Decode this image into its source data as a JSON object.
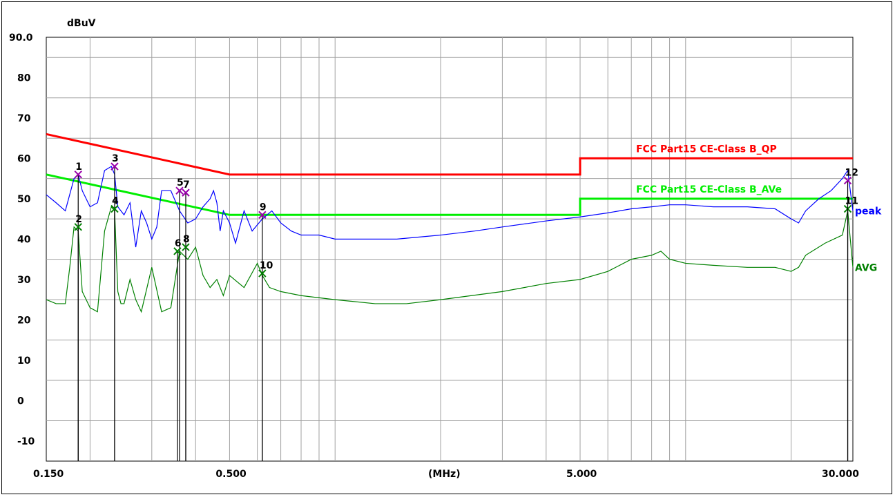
{
  "chart_data": {
    "type": "line",
    "title": "",
    "ylabel": "dBuV",
    "xlabel": "(MHz)",
    "x_scale": "log",
    "xlim": [
      0.15,
      30.0
    ],
    "ylim": [
      -15,
      90
    ],
    "grid": true,
    "y_tick_labels": [
      {
        "value": 90,
        "label": "90.0"
      },
      {
        "value": 80,
        "label": "80"
      },
      {
        "value": 70,
        "label": "70"
      },
      {
        "value": 60,
        "label": "60"
      },
      {
        "value": 50,
        "label": "50"
      },
      {
        "value": 40,
        "label": "40"
      },
      {
        "value": 30,
        "label": "30"
      },
      {
        "value": 20,
        "label": "20"
      },
      {
        "value": 10,
        "label": "10"
      },
      {
        "value": 0,
        "label": "0"
      },
      {
        "value": -10,
        "label": "-10"
      }
    ],
    "x_tick_labels": [
      {
        "value": 0.15,
        "label": "0.150"
      },
      {
        "value": 0.5,
        "label": "0.500"
      },
      {
        "value": 5.0,
        "label": "5.000"
      },
      {
        "value": 30.0,
        "label": "30.000"
      }
    ],
    "limit_lines": [
      {
        "name": "FCC Part15 CE-Class B_QP",
        "color": "#ff0000",
        "points": [
          [
            0.15,
            66
          ],
          [
            0.5,
            56
          ],
          [
            5.0,
            56
          ],
          [
            5.0,
            60
          ],
          [
            30.0,
            60
          ]
        ]
      },
      {
        "name": "FCC Part15 CE-Class B_AVe",
        "color": "#00ee00",
        "points": [
          [
            0.15,
            56
          ],
          [
            0.5,
            46
          ],
          [
            5.0,
            46
          ],
          [
            5.0,
            50
          ],
          [
            30.0,
            50
          ]
        ]
      }
    ],
    "series": [
      {
        "name": "peak",
        "color": "#0000ff",
        "x": [
          0.15,
          0.16,
          0.17,
          0.18,
          0.185,
          0.19,
          0.2,
          0.21,
          0.22,
          0.23,
          0.235,
          0.24,
          0.25,
          0.26,
          0.27,
          0.28,
          0.29,
          0.3,
          0.31,
          0.32,
          0.34,
          0.36,
          0.38,
          0.4,
          0.42,
          0.44,
          0.45,
          0.46,
          0.47,
          0.48,
          0.5,
          0.52,
          0.55,
          0.58,
          0.62,
          0.66,
          0.7,
          0.75,
          0.8,
          0.9,
          1.0,
          1.2,
          1.5,
          2.0,
          2.5,
          3.0,
          4.0,
          5.0,
          6.0,
          7.0,
          8.0,
          9.0,
          10.0,
          12.0,
          15.0,
          18.0,
          20.0,
          21.0,
          22.0,
          24.0,
          26.0,
          28.0,
          29.0,
          30.0
        ],
        "y": [
          51,
          49,
          47,
          55,
          56,
          52,
          48,
          49,
          57,
          58,
          56,
          48,
          46,
          49,
          38,
          47,
          44,
          40,
          43,
          52,
          52,
          47,
          44,
          45,
          48,
          50,
          52,
          49,
          42,
          47,
          44,
          39,
          47,
          42,
          45,
          47,
          44,
          42,
          41,
          41,
          40,
          40,
          40,
          41,
          42,
          43,
          44.5,
          45.5,
          46.5,
          47.5,
          48,
          48.5,
          48.5,
          48,
          48,
          47.5,
          45,
          44,
          47,
          50,
          52,
          55,
          57,
          47
        ]
      },
      {
        "name": "AVG",
        "color": "#008000",
        "x": [
          0.15,
          0.16,
          0.17,
          0.175,
          0.18,
          0.185,
          0.19,
          0.2,
          0.21,
          0.22,
          0.23,
          0.235,
          0.24,
          0.245,
          0.25,
          0.26,
          0.27,
          0.28,
          0.3,
          0.32,
          0.34,
          0.36,
          0.38,
          0.4,
          0.42,
          0.44,
          0.46,
          0.48,
          0.5,
          0.55,
          0.6,
          0.62,
          0.65,
          0.7,
          0.8,
          1.0,
          1.3,
          1.6,
          2.0,
          3.0,
          4.0,
          5.0,
          6.0,
          7.0,
          8.0,
          8.5,
          9.0,
          10.0,
          12.0,
          15.0,
          18.0,
          20.0,
          21.0,
          22.0,
          25.0,
          28.0,
          29.0,
          30.0
        ],
        "y": [
          25,
          24,
          24,
          33,
          43,
          42,
          27,
          23,
          22,
          42,
          48,
          47,
          27,
          24,
          24,
          30,
          25,
          22,
          33,
          22,
          23,
          37,
          35,
          38,
          31,
          28,
          30,
          26,
          31,
          28,
          34,
          31,
          28,
          27,
          26,
          25,
          24,
          24,
          25,
          27,
          29,
          30,
          32,
          35,
          36,
          37,
          35,
          34,
          33.5,
          33,
          33,
          32,
          33,
          36,
          39,
          41,
          47,
          33
        ]
      }
    ],
    "series_labels": [
      {
        "name": "peak",
        "label": "peak"
      },
      {
        "name": "AVG",
        "label": "AVG"
      }
    ],
    "markers": [
      {
        "label": "1",
        "x": 0.185,
        "y": 56,
        "color": "#9900aa"
      },
      {
        "label": "2",
        "x": 0.185,
        "y": 43,
        "color": "#008000"
      },
      {
        "label": "3",
        "x": 0.235,
        "y": 58,
        "color": "#9900aa"
      },
      {
        "label": "4",
        "x": 0.235,
        "y": 47.5,
        "color": "#008000"
      },
      {
        "label": "5",
        "x": 0.36,
        "y": 52,
        "color": "#9900aa"
      },
      {
        "label": "6",
        "x": 0.355,
        "y": 37,
        "color": "#008000"
      },
      {
        "label": "7",
        "x": 0.375,
        "y": 51.5,
        "color": "#9900aa"
      },
      {
        "label": "8",
        "x": 0.375,
        "y": 38,
        "color": "#008000"
      },
      {
        "label": "9",
        "x": 0.62,
        "y": 46,
        "color": "#9900aa"
      },
      {
        "label": "10",
        "x": 0.62,
        "y": 31.5,
        "color": "#008000"
      },
      {
        "label": "11",
        "x": 29.0,
        "y": 47.5,
        "color": "#008000"
      },
      {
        "label": "12",
        "x": 29.0,
        "y": 54.5,
        "color": "#9900aa"
      }
    ]
  }
}
